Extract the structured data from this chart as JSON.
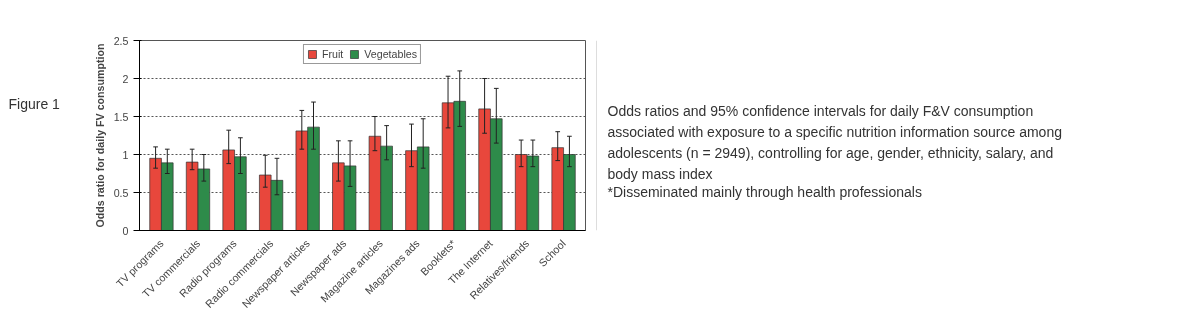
{
  "chart_data": {
    "type": "bar",
    "categories": [
      "TV programs",
      "TV commercials",
      "Radio programs",
      "Radio commercials",
      "Newspaper articles",
      "Newspaper ads",
      "Magazine articles",
      "Magazines ads",
      "Booklets*",
      "The Internet",
      "Relatives/friends",
      "School"
    ],
    "series": [
      {
        "name": "Fruit",
        "color": "#e8473c",
        "values": [
          0.95,
          0.9,
          1.06,
          0.73,
          1.31,
          0.89,
          1.24,
          1.05,
          1.68,
          1.6,
          1.0,
          1.09
        ],
        "errors": [
          [
            0.82,
            1.1
          ],
          [
            0.8,
            1.07
          ],
          [
            0.88,
            1.32
          ],
          [
            0.57,
            0.99
          ],
          [
            1.07,
            1.58
          ],
          [
            0.65,
            1.18
          ],
          [
            1.05,
            1.5
          ],
          [
            0.84,
            1.4
          ],
          [
            1.35,
            2.03
          ],
          [
            1.28,
            2.0
          ],
          [
            0.84,
            1.19
          ],
          [
            0.92,
            1.3
          ]
        ]
      },
      {
        "name": "Vegetables",
        "color": "#2e8b4a",
        "values": [
          0.89,
          0.81,
          0.97,
          0.66,
          1.36,
          0.85,
          1.11,
          1.1,
          1.7,
          1.47,
          0.98,
          1.0
        ],
        "errors": [
          [
            0.75,
            1.07
          ],
          [
            0.65,
            1.0
          ],
          [
            0.75,
            1.22
          ],
          [
            0.47,
            0.95
          ],
          [
            1.07,
            1.69
          ],
          [
            0.58,
            1.18
          ],
          [
            0.93,
            1.38
          ],
          [
            0.82,
            1.47
          ],
          [
            1.37,
            2.1
          ],
          [
            1.15,
            1.87
          ],
          [
            0.84,
            1.19
          ],
          [
            0.84,
            1.24
          ]
        ]
      }
    ],
    "ylabel": "Odds ratio for daily FV consumption",
    "ylim": [
      0,
      2.5
    ],
    "yticks": [
      0,
      0.5,
      1,
      1.5,
      2,
      2.5
    ],
    "grid": "y",
    "legend": "top",
    "annotations": [
      "Figure 1",
      "Odds ratios and 95% confidence intervals for daily F&V consumption associated with exposure to a specific nutrition information source among adolescents (n = 2949), controlling for age, gender, ethnicity, salary, and body mass index",
      "*Disseminated mainly through health professionals"
    ]
  }
}
